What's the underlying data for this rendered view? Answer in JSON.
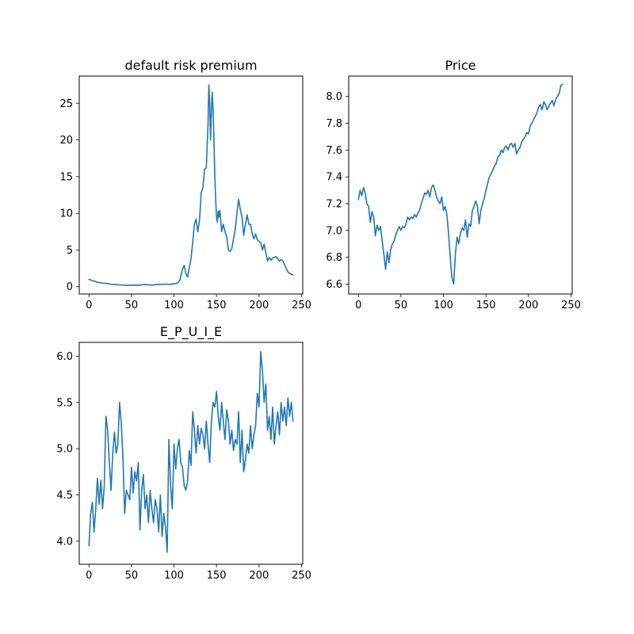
{
  "figure": {
    "background": "#ffffff"
  },
  "chart_data": [
    {
      "type": "line",
      "title": "default risk premium",
      "xlabel": "",
      "ylabel": "",
      "xlim": [
        -11.4,
        251.4
      ],
      "ylim": [
        -1.0,
        28.7
      ],
      "xticks": [
        0,
        50,
        100,
        150,
        200,
        250
      ],
      "xtick_labels": [
        "0",
        "50",
        "100",
        "150",
        "200",
        "250"
      ],
      "yticks": [
        0,
        5,
        10,
        15,
        20,
        25
      ],
      "ytick_labels": [
        "0",
        "5",
        "10",
        "15",
        "20",
        "25"
      ],
      "grid": false,
      "series": [
        {
          "color": "#1f77b4",
          "x": [
            0,
            5,
            10,
            15,
            20,
            25,
            30,
            35,
            40,
            45,
            50,
            55,
            60,
            65,
            70,
            75,
            80,
            85,
            90,
            95,
            100,
            103,
            105,
            107,
            108,
            110,
            112,
            114,
            116,
            118,
            120,
            122,
            124,
            126,
            128,
            130,
            132,
            134,
            136,
            138,
            140,
            141,
            142,
            143,
            144,
            145,
            146,
            147,
            148,
            149,
            150,
            151,
            152,
            153,
            154,
            156,
            158,
            160,
            162,
            164,
            166,
            168,
            170,
            172,
            174,
            176,
            178,
            180,
            182,
            184,
            186,
            188,
            190,
            192,
            194,
            196,
            198,
            200,
            202,
            204,
            206,
            208,
            210,
            212,
            214,
            216,
            218,
            220,
            222,
            224,
            226,
            228,
            230,
            232,
            234,
            236,
            238,
            240
          ],
          "y": [
            1.0,
            0.8,
            0.6,
            0.5,
            0.45,
            0.35,
            0.3,
            0.25,
            0.22,
            0.2,
            0.2,
            0.22,
            0.2,
            0.3,
            0.25,
            0.22,
            0.3,
            0.32,
            0.35,
            0.3,
            0.4,
            0.45,
            0.6,
            0.9,
            1.4,
            2.4,
            2.9,
            1.8,
            1.3,
            2.6,
            3.8,
            6.0,
            8.5,
            9.2,
            7.5,
            9.0,
            12.8,
            13.5,
            16.0,
            16.2,
            22.0,
            27.5,
            25.0,
            20.0,
            24.0,
            26.5,
            24.0,
            20.0,
            15.0,
            12.0,
            9.5,
            8.8,
            10.3,
            9.5,
            10.4,
            7.5,
            8.5,
            7.5,
            6.8,
            5.0,
            4.8,
            5.2,
            6.5,
            7.8,
            10.0,
            11.9,
            10.5,
            9.5,
            7.0,
            8.5,
            9.8,
            8.5,
            8.5,
            7.2,
            6.5,
            7.2,
            6.4,
            6.2,
            6.0,
            5.0,
            5.8,
            4.6,
            3.5,
            4.0,
            3.6,
            3.9,
            4.0,
            4.1,
            3.8,
            3.5,
            3.7,
            3.5,
            3.0,
            2.5,
            2.0,
            1.8,
            1.7,
            1.6
          ]
        }
      ]
    },
    {
      "type": "line",
      "title": "Price",
      "xlabel": "",
      "ylabel": "",
      "xlim": [
        -11.4,
        251.4
      ],
      "ylim": [
        6.526,
        8.152
      ],
      "xticks": [
        0,
        50,
        100,
        150,
        200,
        250
      ],
      "xtick_labels": [
        "0",
        "50",
        "100",
        "150",
        "200",
        "250"
      ],
      "yticks": [
        6.6,
        6.8,
        7.0,
        7.2,
        7.4,
        7.6,
        7.8,
        8.0
      ],
      "ytick_labels": [
        "6.6",
        "6.8",
        "7.0",
        "7.2",
        "7.4",
        "7.6",
        "7.8",
        "8.0"
      ],
      "grid": false,
      "series": [
        {
          "color": "#1f77b4",
          "x": [
            0,
            2,
            4,
            6,
            8,
            10,
            12,
            14,
            16,
            18,
            20,
            22,
            24,
            26,
            28,
            30,
            32,
            34,
            36,
            38,
            40,
            42,
            44,
            46,
            48,
            50,
            52,
            54,
            56,
            58,
            60,
            62,
            64,
            66,
            68,
            70,
            72,
            74,
            76,
            78,
            80,
            82,
            84,
            86,
            88,
            90,
            92,
            94,
            96,
            98,
            100,
            102,
            104,
            106,
            108,
            110,
            112,
            114,
            116,
            118,
            120,
            122,
            124,
            126,
            128,
            130,
            132,
            134,
            136,
            138,
            140,
            142,
            144,
            146,
            148,
            150,
            152,
            154,
            156,
            158,
            160,
            162,
            164,
            166,
            168,
            170,
            172,
            174,
            176,
            178,
            180,
            182,
            184,
            186,
            188,
            190,
            192,
            194,
            196,
            198,
            200,
            202,
            204,
            206,
            208,
            210,
            212,
            214,
            216,
            218,
            220,
            222,
            224,
            226,
            228,
            230,
            232,
            234,
            236,
            238,
            240
          ],
          "y": [
            7.23,
            7.3,
            7.26,
            7.32,
            7.28,
            7.2,
            7.18,
            7.06,
            7.14,
            7.1,
            6.96,
            7.04,
            7.0,
            7.03,
            6.92,
            6.82,
            6.71,
            6.84,
            6.76,
            6.86,
            6.9,
            6.92,
            6.97,
            7.0,
            7.03,
            7.0,
            7.03,
            7.02,
            7.05,
            7.1,
            7.08,
            7.1,
            7.09,
            7.12,
            7.1,
            7.13,
            7.15,
            7.2,
            7.24,
            7.28,
            7.27,
            7.3,
            7.25,
            7.32,
            7.34,
            7.3,
            7.25,
            7.22,
            7.2,
            7.25,
            7.15,
            7.18,
            7.12,
            6.98,
            6.8,
            6.65,
            6.6,
            6.82,
            6.95,
            6.9,
            6.98,
            7.02,
            7.0,
            7.08,
            6.95,
            7.05,
            7.03,
            7.15,
            7.18,
            7.22,
            7.18,
            7.05,
            7.15,
            7.2,
            7.24,
            7.3,
            7.35,
            7.4,
            7.42,
            7.45,
            7.48,
            7.5,
            7.55,
            7.56,
            7.6,
            7.58,
            7.62,
            7.63,
            7.6,
            7.64,
            7.65,
            7.62,
            7.65,
            7.57,
            7.6,
            7.62,
            7.66,
            7.68,
            7.7,
            7.73,
            7.72,
            7.78,
            7.8,
            7.83,
            7.85,
            7.88,
            7.92,
            7.94,
            7.9,
            7.96,
            7.94,
            7.9,
            7.93,
            7.95,
            7.97,
            7.93,
            7.98,
            8.0,
            8.02,
            8.08,
            8.09
          ]
        }
      ]
    },
    {
      "type": "line",
      "title": "E_P_U_I_E",
      "xlabel": "",
      "ylabel": "",
      "xlim": [
        -11.4,
        251.4
      ],
      "ylim": [
        3.75,
        6.15
      ],
      "xticks": [
        0,
        50,
        100,
        150,
        200,
        250
      ],
      "xtick_labels": [
        "0",
        "50",
        "100",
        "150",
        "200",
        "250"
      ],
      "yticks": [
        4.0,
        4.5,
        5.0,
        5.5,
        6.0
      ],
      "ytick_labels": [
        "4.0",
        "4.5",
        "5.0",
        "5.5",
        "6.0"
      ],
      "grid": false,
      "series": [
        {
          "color": "#1f77b4",
          "x": [
            0,
            2,
            4,
            6,
            8,
            10,
            12,
            14,
            16,
            18,
            20,
            22,
            24,
            26,
            28,
            30,
            32,
            34,
            36,
            38,
            40,
            42,
            44,
            46,
            48,
            50,
            52,
            54,
            56,
            58,
            60,
            62,
            64,
            66,
            68,
            70,
            72,
            74,
            76,
            78,
            80,
            82,
            84,
            86,
            88,
            90,
            92,
            94,
            96,
            98,
            100,
            102,
            104,
            106,
            108,
            110,
            112,
            114,
            116,
            118,
            120,
            122,
            124,
            126,
            128,
            130,
            132,
            134,
            136,
            138,
            140,
            142,
            144,
            146,
            148,
            150,
            152,
            154,
            156,
            158,
            160,
            162,
            164,
            166,
            168,
            170,
            172,
            174,
            176,
            178,
            180,
            182,
            184,
            186,
            188,
            190,
            192,
            194,
            196,
            198,
            200,
            202,
            204,
            206,
            208,
            210,
            212,
            214,
            216,
            218,
            220,
            222,
            224,
            226,
            228,
            230,
            232,
            234,
            236,
            238,
            240
          ],
          "y": [
            3.95,
            4.3,
            4.42,
            4.1,
            4.35,
            4.68,
            4.4,
            4.66,
            4.35,
            4.6,
            5.35,
            5.2,
            4.85,
            4.55,
            4.95,
            5.18,
            4.95,
            5.05,
            5.5,
            5.28,
            4.9,
            4.3,
            4.55,
            4.5,
            4.45,
            4.8,
            4.52,
            4.75,
            4.65,
            4.85,
            4.12,
            4.55,
            4.72,
            4.35,
            4.5,
            4.2,
            4.55,
            4.35,
            4.2,
            4.45,
            4.35,
            4.1,
            4.5,
            4.05,
            4.3,
            4.15,
            3.88,
            5.1,
            4.6,
            4.35,
            5.05,
            4.78,
            5.0,
            5.1,
            4.85,
            4.8,
            4.6,
            4.55,
            4.65,
            4.98,
            4.82,
            5.4,
            5.2,
            4.95,
            5.25,
            5.05,
            5.22,
            5.15,
            5.0,
            5.3,
            5.05,
            4.85,
            5.3,
            5.5,
            5.45,
            5.62,
            5.35,
            5.2,
            5.5,
            5.3,
            5.1,
            5.42,
            5.3,
            5.05,
            5.2,
            4.98,
            5.1,
            5.05,
            5.4,
            4.85,
            5.2,
            4.75,
            4.88,
            5.05,
            4.95,
            5.25,
            5.0,
            5.15,
            5.25,
            5.6,
            5.45,
            6.05,
            5.85,
            5.5,
            5.7,
            5.2,
            5.35,
            5.1,
            5.45,
            5.05,
            5.25,
            5.4,
            5.15,
            5.5,
            5.3,
            5.45,
            5.25,
            5.55,
            5.35,
            5.5,
            5.3
          ]
        }
      ]
    }
  ]
}
